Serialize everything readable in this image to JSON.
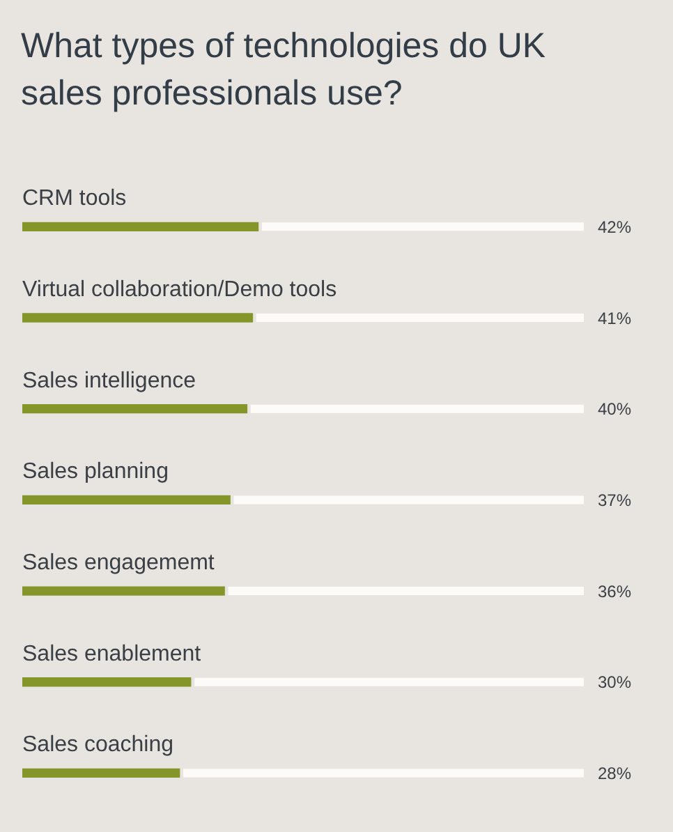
{
  "chart_data": {
    "type": "bar",
    "orientation": "horizontal",
    "stacked": true,
    "title": "What types of technologies do UK sales professionals use?",
    "categories": [
      "CRM tools",
      "Virtual collaboration/Demo tools",
      "Sales intelligence",
      "Sales planning",
      "Sales engagememt",
      "Sales enablement",
      "Sales coaching"
    ],
    "series": [
      {
        "color": "#84962a",
        "values": [
          42,
          41,
          40,
          37,
          36,
          30,
          28
        ],
        "value_labels": [
          "42%",
          "41%",
          "40%",
          "37%",
          "36%",
          "30%",
          "28%"
        ]
      },
      {
        "color": "#fdfbf7",
        "values": [
          58,
          59,
          60,
          63,
          64,
          70,
          72
        ]
      }
    ],
    "xlim": [
      0,
      100
    ],
    "tick_labels": "y",
    "grid": false,
    "legend": false
  }
}
